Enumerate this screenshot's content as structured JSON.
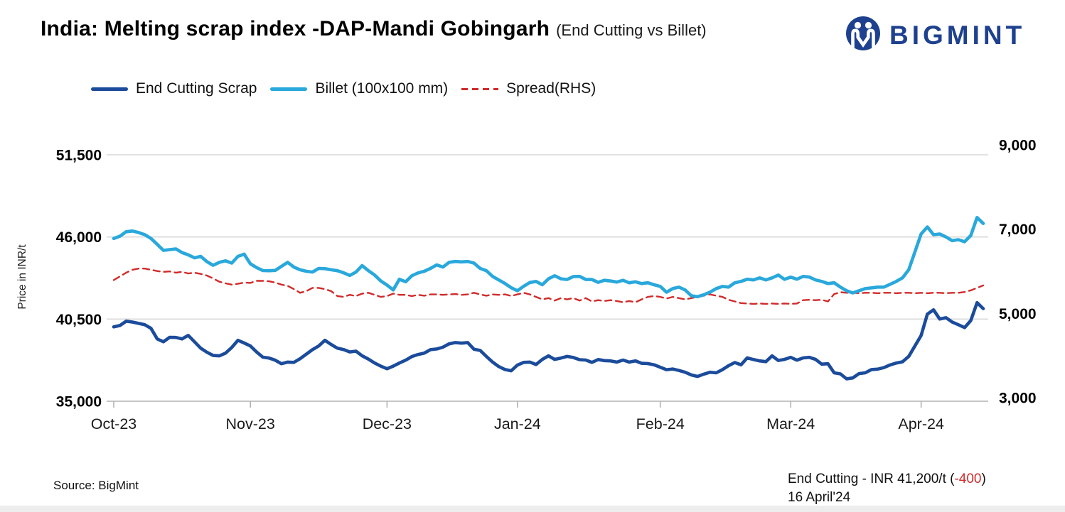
{
  "header": {
    "title": "India: Melting scrap index -DAP-Mandi Gobingarh",
    "subtitle": "(End Cutting vs Billet)",
    "brand": "BIGMINT",
    "brand_color": "#1e418f"
  },
  "chart_data": {
    "type": "line",
    "title": "India: Melting scrap index -DAP-Mandi Gobingarh (End Cutting vs Billet)",
    "grid": "horizontal only",
    "legend_position": "top",
    "left_axis": {
      "label": "Price in INR/t",
      "ylim": [
        35000,
        51500
      ],
      "ticks": [
        {
          "value": 35000,
          "label": "35,000"
        },
        {
          "value": 40500,
          "label": "40,500"
        },
        {
          "value": 46000,
          "label": "46,000"
        },
        {
          "value": 51500,
          "label": "51,500"
        }
      ]
    },
    "right_axis": {
      "label": "Spread (RHS)",
      "ylim": [
        3000,
        9000
      ],
      "ticks": [
        {
          "value": 3000,
          "label": "3,000"
        },
        {
          "value": 5000,
          "label": "5,000"
        },
        {
          "value": 7000,
          "label": "7,000"
        },
        {
          "value": 9000,
          "label": "9,000"
        }
      ]
    },
    "x": {
      "n_points": 141,
      "tick_labels": [
        "Oct-23",
        "Nov-23",
        "Dec-23",
        "Jan-24",
        "Feb-24",
        "Mar-24",
        "Apr-24"
      ],
      "tick_indices": [
        0,
        22,
        44,
        65,
        88,
        109,
        130
      ]
    },
    "series": [
      {
        "name": "End Cutting Scrap",
        "axis": "left",
        "color": "#1b4b9b",
        "line_style": "solid",
        "values": [
          39980,
          40070,
          40360,
          40300,
          40210,
          40120,
          39880,
          39170,
          38980,
          39280,
          39270,
          39170,
          39410,
          38980,
          38550,
          38280,
          38060,
          38040,
          38220,
          38600,
          39080,
          38900,
          38700,
          38300,
          37950,
          37890,
          37750,
          37510,
          37620,
          37600,
          37850,
          38150,
          38450,
          38700,
          39080,
          38800,
          38550,
          38460,
          38300,
          38350,
          38040,
          37820,
          37560,
          37350,
          37180,
          37350,
          37560,
          37750,
          37990,
          38130,
          38220,
          38450,
          38500,
          38620,
          38840,
          38930,
          38890,
          38930,
          38480,
          38400,
          38000,
          37620,
          37320,
          37120,
          37040,
          37420,
          37600,
          37620,
          37460,
          37800,
          38040,
          37800,
          37890,
          38000,
          37930,
          37780,
          37760,
          37600,
          37790,
          37720,
          37700,
          37620,
          37760,
          37620,
          37700,
          37540,
          37520,
          37440,
          37280,
          37110,
          37160,
          37060,
          36940,
          36760,
          36660,
          36810,
          36940,
          36900,
          37110,
          37380,
          37590,
          37440,
          37900,
          37790,
          37700,
          37650,
          38040,
          37730,
          37800,
          37940,
          37750,
          37900,
          37940,
          37800,
          37480,
          37510,
          36900,
          36830,
          36500,
          36560,
          36850,
          36900,
          37120,
          37150,
          37250,
          37430,
          37560,
          37640,
          38000,
          38700,
          39400,
          40830,
          41120,
          40500,
          40590,
          40300,
          40120,
          39930,
          40400,
          41600,
          41200
        ]
      },
      {
        "name": "Billet (100x100 mm)",
        "axis": "left",
        "color": "#29a8dc",
        "line_style": "solid",
        "values": [
          45900,
          46050,
          46350,
          46400,
          46300,
          46150,
          45900,
          45500,
          45100,
          45150,
          45200,
          44950,
          44800,
          44600,
          44700,
          44350,
          44100,
          44300,
          44400,
          44250,
          44700,
          44850,
          44200,
          43950,
          43750,
          43740,
          43760,
          44030,
          44300,
          43980,
          43800,
          43700,
          43650,
          43890,
          43880,
          43800,
          43740,
          43600,
          43420,
          43650,
          44080,
          43740,
          43450,
          43050,
          42780,
          42450,
          43170,
          43000,
          43400,
          43590,
          43700,
          43890,
          44130,
          43980,
          44300,
          44360,
          44330,
          44360,
          44250,
          43890,
          43740,
          43360,
          43120,
          42880,
          42600,
          42400,
          42700,
          42950,
          43020,
          42800,
          43200,
          43400,
          43200,
          43150,
          43350,
          43360,
          43150,
          43150,
          42960,
          43100,
          43050,
          42980,
          43100,
          42930,
          43000,
          42880,
          42930,
          42800,
          42690,
          42300,
          42540,
          42640,
          42450,
          42060,
          42000,
          42130,
          42300,
          42540,
          42690,
          42640,
          42930,
          43020,
          43170,
          43120,
          43260,
          43120,
          43260,
          43450,
          43160,
          43310,
          43170,
          43360,
          43310,
          43120,
          43020,
          42880,
          42930,
          42640,
          42400,
          42250,
          42400,
          42540,
          42590,
          42640,
          42640,
          42830,
          43020,
          43260,
          43800,
          45000,
          46200,
          46670,
          46150,
          46200,
          46000,
          45750,
          45820,
          45680,
          46100,
          47300,
          46900
        ]
      },
      {
        "name": "Spread(RHS)",
        "axis": "right",
        "color": "#d12b2b",
        "line_style": "dashed",
        "values": [
          5950,
          6040,
          6130,
          6200,
          6230,
          6230,
          6200,
          6170,
          6150,
          6160,
          6130,
          6150,
          6110,
          6130,
          6100,
          6060,
          5990,
          5910,
          5870,
          5840,
          5860,
          5890,
          5880,
          5930,
          5930,
          5920,
          5890,
          5840,
          5810,
          5730,
          5640,
          5680,
          5760,
          5760,
          5730,
          5680,
          5560,
          5540,
          5590,
          5560,
          5620,
          5640,
          5590,
          5540,
          5560,
          5620,
          5590,
          5590,
          5560,
          5590,
          5570,
          5600,
          5600,
          5590,
          5600,
          5610,
          5590,
          5600,
          5640,
          5600,
          5570,
          5600,
          5590,
          5600,
          5565,
          5600,
          5640,
          5600,
          5540,
          5480,
          5510,
          5450,
          5510,
          5480,
          5510,
          5450,
          5510,
          5430,
          5460,
          5440,
          5460,
          5440,
          5410,
          5440,
          5410,
          5480,
          5540,
          5560,
          5540,
          5500,
          5540,
          5510,
          5480,
          5510,
          5540,
          5570,
          5600,
          5570,
          5540,
          5470,
          5430,
          5390,
          5380,
          5370,
          5380,
          5370,
          5380,
          5370,
          5380,
          5370,
          5380,
          5460,
          5470,
          5460,
          5470,
          5430,
          5610,
          5655,
          5640,
          5640,
          5630,
          5640,
          5640,
          5630,
          5640,
          5640,
          5630,
          5640,
          5640,
          5630,
          5640,
          5630,
          5640,
          5640,
          5630,
          5640,
          5640,
          5660,
          5700,
          5760,
          5820
        ]
      }
    ]
  },
  "footer": {
    "source": "Source: BigMint",
    "annotation": {
      "prefix": "End Cutting - INR 41,200/t (",
      "change": "-400",
      "suffix": ")",
      "change_color": "#d12b2b",
      "date": "16 April'24"
    }
  }
}
